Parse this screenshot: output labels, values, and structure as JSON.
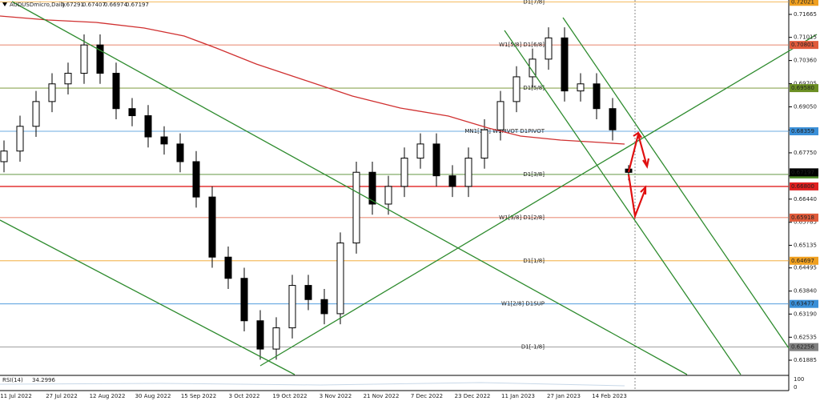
{
  "chart_data": {
    "type": "candlestick",
    "symbol": "AUDUSDmicro,Daily",
    "ohlc_header": [
      0.67291,
      0.67407,
      0.66974,
      0.67197
    ],
    "ylim": [
      0.61478,
      0.72072
    ],
    "yticks": [
      0.71665,
      0.71015,
      {
        "value": 0.7036,
        "label": "0.70360"
      },
      0.69705,
      {
        "value": 0.6905,
        "label": "0.69050"
      },
      0.68395,
      {
        "value": 0.6775,
        "label": "0.67750"
      },
      0.67095,
      {
        "value": 0.6644,
        "label": "0.66440"
      },
      0.65785,
      0.65135,
      0.64495,
      {
        "value": 0.6384,
        "label": "0.63840"
      },
      {
        "value": 0.6319,
        "label": "0.63190"
      },
      0.62535,
      0.61885
    ],
    "levels": [
      {
        "name": "D1[7/8]",
        "value": 0.72021,
        "color": "#f0a020"
      },
      {
        "name": "W1[5/8] D1[6/8]",
        "value": 0.70801,
        "color": "#e05a3a"
      },
      {
        "name": "D1[5/8]",
        "value": 0.6958,
        "value_label": "0.69580",
        "color": "#6b8e23"
      },
      {
        "name": "MN1[3/8] W1PIVOT D1PIVOT",
        "value": 0.68359,
        "color": "#3a8fd8"
      },
      {
        "name": "D1[3/8]",
        "value": 0.67139,
        "color": "#4f8a2a"
      },
      {
        "value": 0.668,
        "value_label": "0.66800",
        "color": "#e02020"
      },
      {
        "name": "W1[3/8] D1[2/8]",
        "value": 0.65918,
        "color": "#e05a3a"
      },
      {
        "name": "D1[1/8]",
        "value": 0.64697,
        "color": "#f0a020"
      },
      {
        "name": "W1[2/8] D1SUP",
        "value": 0.63477,
        "color": "#3a8fd8"
      },
      {
        "name": "D1[-1/8]",
        "value": 0.62256,
        "color": "#808080"
      }
    ],
    "current_price": 0.67197,
    "categories": [
      "11 Jul 2022",
      "27 Jul 2022",
      "12 Aug 2022",
      "30 Aug 2022",
      "15 Sep 2022",
      "3 Oct 2022",
      "19 Oct 2022",
      "3 Nov 2022",
      "21 Nov 2022",
      "7 Dec 2022",
      "23 Dec 2022",
      "11 Jan 2023",
      "27 Jan 2023",
      "14 Feb 2023"
    ],
    "candles": [
      [
        0.675,
        0.681,
        0.672,
        0.678
      ],
      [
        0.678,
        0.688,
        0.675,
        0.685
      ],
      [
        0.685,
        0.695,
        0.682,
        0.692
      ],
      [
        0.692,
        0.7,
        0.689,
        0.697
      ],
      [
        0.697,
        0.703,
        0.694,
        0.7
      ],
      [
        0.7,
        0.711,
        0.697,
        0.708
      ],
      [
        0.708,
        0.711,
        0.697,
        0.7
      ],
      [
        0.7,
        0.703,
        0.687,
        0.69
      ],
      [
        0.69,
        0.693,
        0.685,
        0.688
      ],
      [
        0.688,
        0.691,
        0.679,
        0.682
      ],
      [
        0.682,
        0.685,
        0.677,
        0.68
      ],
      [
        0.68,
        0.683,
        0.672,
        0.675
      ],
      [
        0.675,
        0.678,
        0.662,
        0.665
      ],
      [
        0.665,
        0.668,
        0.645,
        0.648
      ],
      [
        0.648,
        0.651,
        0.639,
        0.642
      ],
      [
        0.642,
        0.645,
        0.627,
        0.63
      ],
      [
        0.63,
        0.633,
        0.619,
        0.622
      ],
      [
        0.622,
        0.631,
        0.619,
        0.628
      ],
      [
        0.628,
        0.643,
        0.625,
        0.64
      ],
      [
        0.64,
        0.643,
        0.633,
        0.636
      ],
      [
        0.636,
        0.639,
        0.629,
        0.632
      ],
      [
        0.632,
        0.655,
        0.629,
        0.652
      ],
      [
        0.652,
        0.675,
        0.649,
        0.672
      ],
      [
        0.672,
        0.675,
        0.66,
        0.663
      ],
      [
        0.663,
        0.671,
        0.66,
        0.668
      ],
      [
        0.668,
        0.679,
        0.665,
        0.676
      ],
      [
        0.676,
        0.683,
        0.673,
        0.68
      ],
      [
        0.68,
        0.683,
        0.668,
        0.671
      ],
      [
        0.671,
        0.674,
        0.665,
        0.668
      ],
      [
        0.668,
        0.679,
        0.665,
        0.676
      ],
      [
        0.676,
        0.687,
        0.673,
        0.684
      ],
      [
        0.684,
        0.695,
        0.681,
        0.692
      ],
      [
        0.692,
        0.702,
        0.689,
        0.699
      ],
      [
        0.699,
        0.707,
        0.696,
        0.704
      ],
      [
        0.704,
        0.713,
        0.701,
        0.71
      ],
      [
        0.71,
        0.713,
        0.692,
        0.695
      ],
      [
        0.695,
        0.7,
        0.692,
        0.697
      ],
      [
        0.697,
        0.7,
        0.687,
        0.69
      ],
      [
        0.69,
        0.693,
        0.681,
        0.684
      ],
      [
        0.67291,
        0.67407,
        0.66974,
        0.67197
      ]
    ],
    "rsi": {
      "name": "RSI(14)",
      "value": 34.2996,
      "yticks": [
        100,
        0
      ]
    }
  }
}
